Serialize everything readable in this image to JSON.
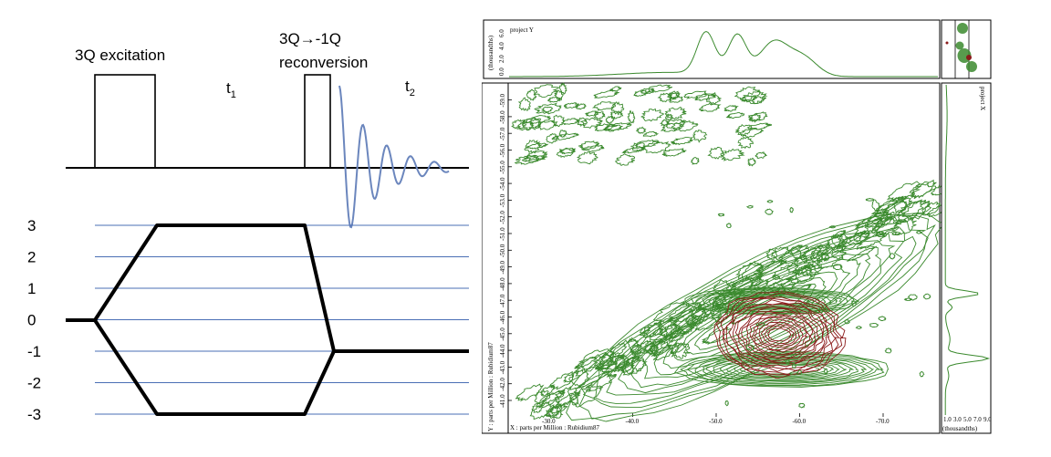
{
  "pulse_sequence": {
    "label_excitation": "3Q excitation",
    "label_t1": "t",
    "label_t1_sub": "1",
    "label_reconv_line1": "3Q→-1Q",
    "label_reconv_line2": "reconversion",
    "label_t2": "t",
    "label_t2_sub": "2"
  },
  "coherence_pathway": {
    "levels": [
      "3",
      "2",
      "1",
      "0",
      "-1",
      "-2",
      "-3"
    ],
    "colors": {
      "grid": "#4a6fb5",
      "path": "#000000",
      "fid": "#6b86bd"
    }
  },
  "spectrum": {
    "top_projection_title": "project Y",
    "top_projection_ylabel": "(thousandths)",
    "top_projection_ticks": [
      "0.0",
      "2.0",
      "4.0",
      "6.0"
    ],
    "y_axis_label": "Y : parts per Million : Rubidium87",
    "y_ticks": [
      "-41.0",
      "-42.0",
      "-43.0",
      "-44.0",
      "-45.0",
      "-46.0",
      "-47.0",
      "-48.0",
      "-49.0",
      "-50.0",
      "-51.0",
      "-52.0",
      "-53.0",
      "-54.0",
      "-55.0",
      "-56.0",
      "-57.0",
      "-58.0",
      "-59.0"
    ],
    "x_axis_label": "X : parts per Million : Rubidium87",
    "x_ticks": [
      "-30.0",
      "-40.0",
      "-50.0",
      "-60.0",
      "-70.0"
    ],
    "right_projection_title": "project X",
    "right_projection_ticks": [
      "1.0",
      "3.0",
      "5.0",
      "7.0",
      "9.0"
    ],
    "right_projection_xlabel": "(thousandths)",
    "colors": {
      "contour_green": "#3b8a2e",
      "contour_red": "#8b1a1a",
      "projection": "#3b8a2e"
    }
  }
}
